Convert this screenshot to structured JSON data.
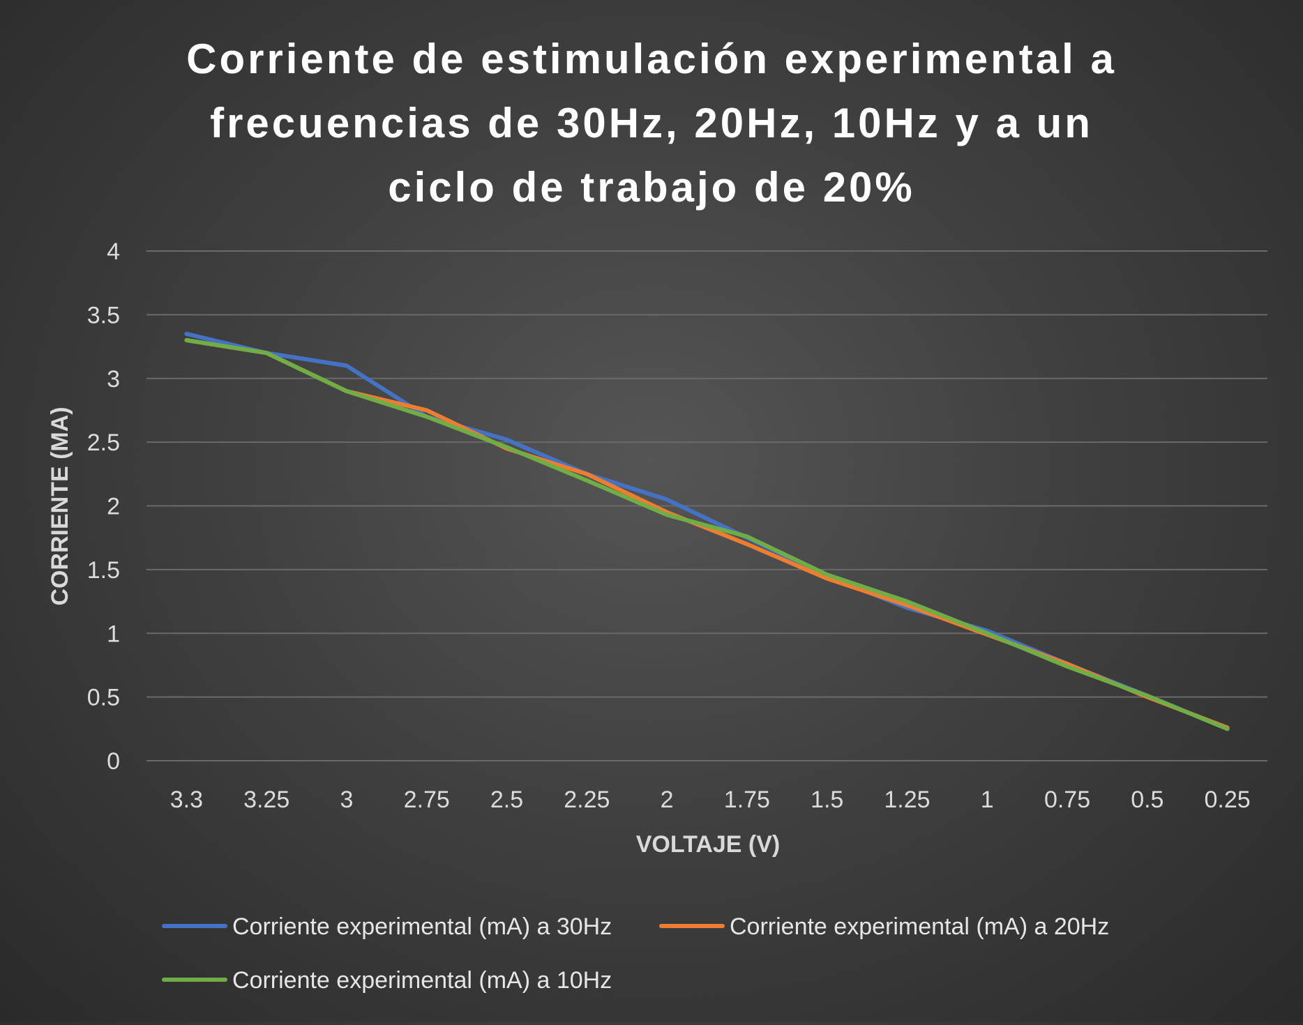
{
  "chart_data": {
    "type": "line",
    "title": "Corriente de estimulación experimental a frecuencias de 30Hz, 20Hz, 10Hz y a un ciclo de trabajo de 20%",
    "title_lines": [
      "Corriente de estimulación experimental a",
      "frecuencias de 30Hz, 20Hz, 10Hz y a un",
      "ciclo de trabajo de 20%"
    ],
    "xlabel": "VOLTAJE (V)",
    "ylabel": "CORRIENTE (MA)",
    "categories": [
      "3.3",
      "3.25",
      "3",
      "2.75",
      "2.5",
      "2.25",
      "2",
      "1.75",
      "1.5",
      "1.25",
      "1",
      "0.75",
      "0.5",
      "0.25"
    ],
    "ylim": [
      0,
      4
    ],
    "yticks": [
      "0",
      "0.5",
      "1",
      "1.5",
      "2",
      "2.5",
      "3",
      "3.5",
      "4"
    ],
    "grid": true,
    "legend_position": "bottom",
    "series": [
      {
        "name": "Corriente experimental (mA) a 30Hz",
        "color": "#4472c4",
        "values": [
          3.35,
          3.2,
          3.1,
          2.7,
          2.52,
          2.25,
          2.05,
          1.75,
          1.45,
          1.2,
          1.02,
          0.76,
          0.51,
          0.25
        ]
      },
      {
        "name": "Corriente experimental (mA) a 20Hz",
        "color": "#ed7d31",
        "values": [
          3.3,
          3.2,
          2.9,
          2.75,
          2.45,
          2.25,
          1.95,
          1.7,
          1.43,
          1.22,
          0.99,
          0.76,
          0.5,
          0.26
        ]
      },
      {
        "name": "Corriente experimental (mA) a 10Hz",
        "color": "#70ad47",
        "values": [
          3.3,
          3.2,
          2.9,
          2.7,
          2.46,
          2.2,
          1.93,
          1.76,
          1.46,
          1.25,
          1.0,
          0.74,
          0.51,
          0.25
        ]
      }
    ]
  }
}
